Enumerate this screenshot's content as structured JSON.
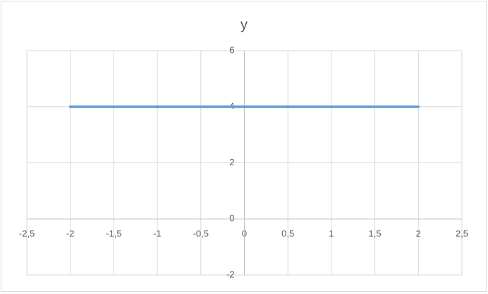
{
  "chart_data": {
    "type": "line",
    "title": "y",
    "x": [
      -2,
      2
    ],
    "values": [
      4,
      4
    ],
    "color": "#5b9bd5",
    "xlim": [
      -2.5,
      2.5
    ],
    "xticks": [
      {
        "value": -2.5,
        "label": "-2,5"
      },
      -2,
      {
        "value": -1.5,
        "label": "-1,5"
      },
      -1,
      {
        "value": -0.5,
        "label": "-0,5"
      },
      0,
      {
        "value": 0.5,
        "label": "0,5"
      },
      1,
      {
        "value": 1.5,
        "label": "1,5"
      },
      2,
      {
        "value": 2.5,
        "label": "2,5"
      }
    ],
    "ylim": [
      -2,
      6
    ],
    "yticks": [
      -2,
      0,
      2,
      4,
      6
    ],
    "grid": true
  }
}
